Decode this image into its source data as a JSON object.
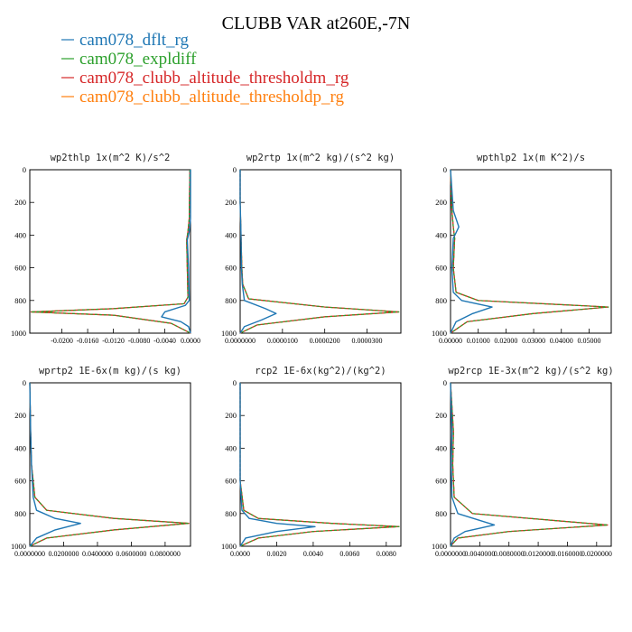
{
  "title": "CLUBB VAR at260E,-7N",
  "legend": [
    {
      "name": "cam078_dflt_rg",
      "color": "#1f77b4"
    },
    {
      "name": "cam078_expldiff",
      "color": "#2ca02c"
    },
    {
      "name": "cam078_clubb_altitude_thresholdm_rg",
      "color": "#d62728"
    },
    {
      "name": "cam078_clubb_altitude_thresholdp_rg",
      "color": "#ff7f0e"
    }
  ],
  "chart_data": [
    {
      "type": "line",
      "title": "wp2thlp  1x(m^2 K)/s^2",
      "xlim": [
        -0.025,
        0.0
      ],
      "ylim": [
        1000,
        0
      ],
      "yticks": [
        "0",
        "200",
        "400",
        "600",
        "800",
        "1000"
      ],
      "xticks": [
        "-0.0200",
        "-0.0160",
        "-0.0120",
        "-0.0080",
        "-0.0040",
        "0.0000"
      ],
      "series": [
        {
          "name": "cam078_dflt_rg",
          "x": [
            0.0,
            0.0,
            -0.0002,
            -0.0005,
            -0.0003,
            -0.0002,
            -0.0008,
            -0.004,
            -0.0045,
            -0.0015,
            -0.0003,
            0.0
          ],
          "y": [
            0,
            300,
            380,
            430,
            600,
            800,
            830,
            870,
            900,
            930,
            960,
            1000
          ]
        },
        {
          "name": "cam078_expldiff",
          "x": [
            -0.0001,
            -0.0002,
            -0.0004,
            -0.0006,
            -0.0005,
            -0.0004,
            -0.001,
            -0.012,
            -0.0248,
            -0.012,
            -0.003,
            0.0
          ],
          "y": [
            0,
            300,
            380,
            430,
            600,
            780,
            820,
            850,
            870,
            890,
            940,
            1000
          ]
        },
        {
          "name": "cam078_clubb_altitude_thresholdm_rg",
          "x": [
            -0.0001,
            -0.0002,
            -0.0004,
            -0.0006,
            -0.0005,
            -0.0004,
            -0.001,
            -0.012,
            -0.0248,
            -0.012,
            -0.003,
            0.0
          ],
          "y": [
            0,
            300,
            380,
            430,
            600,
            780,
            820,
            850,
            870,
            890,
            940,
            1000
          ]
        },
        {
          "name": "cam078_clubb_altitude_thresholdp_rg",
          "x": [
            -0.0001,
            -0.0002,
            -0.0004,
            -0.0006,
            -0.0005,
            -0.0004,
            -0.001,
            -0.012,
            -0.0248,
            -0.012,
            -0.003,
            0.0
          ],
          "y": [
            0,
            300,
            380,
            430,
            600,
            780,
            820,
            850,
            870,
            890,
            940,
            1000
          ]
        }
      ]
    },
    {
      "type": "line",
      "title": "wp2rtp  1x(m^2 kg)/(s^2 kg)",
      "xlim": [
        0.0,
        3.8e-05
      ],
      "ylim": [
        1000,
        0
      ],
      "yticks": [
        "0",
        "200",
        "400",
        "600",
        "800",
        "1000"
      ],
      "xticks": [
        "0.0000000",
        "0.0000100",
        "0.0000200",
        "0.0000300"
      ],
      "series": [
        {
          "name": "cam078_dflt_rg",
          "x": [
            0.0,
            0.0,
            2e-07,
            3e-07,
            5e-07,
            1e-06,
            6e-06,
            8.5e-06,
            5e-06,
            1e-06,
            0.0
          ],
          "y": [
            0,
            200,
            400,
            600,
            700,
            800,
            850,
            880,
            920,
            960,
            1000
          ]
        },
        {
          "name": "cam078_expldiff",
          "x": [
            0.0,
            0.0,
            2e-07,
            4e-07,
            6e-07,
            2e-06,
            2e-05,
            3.75e-05,
            2e-05,
            4e-06,
            0.0
          ],
          "y": [
            0,
            200,
            400,
            600,
            700,
            790,
            840,
            870,
            900,
            950,
            1000
          ]
        },
        {
          "name": "cam078_clubb_altitude_thresholdm_rg",
          "x": [
            0.0,
            0.0,
            2e-07,
            4e-07,
            6e-07,
            2e-06,
            2e-05,
            3.75e-05,
            2e-05,
            4e-06,
            0.0
          ],
          "y": [
            0,
            200,
            400,
            600,
            700,
            790,
            840,
            870,
            900,
            950,
            1000
          ]
        },
        {
          "name": "cam078_clubb_altitude_thresholdp_rg",
          "x": [
            0.0,
            0.0,
            2e-07,
            4e-07,
            6e-07,
            2e-06,
            2e-05,
            3.75e-05,
            2e-05,
            4e-06,
            0.0
          ],
          "y": [
            0,
            200,
            400,
            600,
            700,
            790,
            840,
            870,
            900,
            950,
            1000
          ]
        }
      ]
    },
    {
      "type": "line",
      "title": "wpthlp2  1x(m K^2)/s",
      "xlim": [
        0.0,
        0.058
      ],
      "ylim": [
        1000,
        0
      ],
      "yticks": [
        "0",
        "200",
        "400",
        "600",
        "800",
        "1000"
      ],
      "xticks": [
        "0.00000",
        "0.01000",
        "0.02000",
        "0.03000",
        "0.04000",
        "0.05000"
      ],
      "series": [
        {
          "name": "cam078_dflt_rg",
          "x": [
            0.0,
            0.001,
            0.003,
            0.001,
            0.0005,
            0.001,
            0.004,
            0.015,
            0.008,
            0.002,
            0.0
          ],
          "y": [
            0,
            250,
            350,
            420,
            600,
            750,
            800,
            840,
            880,
            930,
            1000
          ]
        },
        {
          "name": "cam078_expldiff",
          "x": [
            0.0,
            0.0005,
            0.001,
            0.0015,
            0.001,
            0.002,
            0.01,
            0.057,
            0.03,
            0.006,
            0.0
          ],
          "y": [
            0,
            250,
            350,
            420,
            600,
            750,
            800,
            840,
            880,
            930,
            1000
          ]
        },
        {
          "name": "cam078_clubb_altitude_thresholdm_rg",
          "x": [
            0.0,
            0.0005,
            0.001,
            0.0015,
            0.001,
            0.002,
            0.01,
            0.057,
            0.03,
            0.006,
            0.0
          ],
          "y": [
            0,
            250,
            350,
            420,
            600,
            750,
            800,
            840,
            880,
            930,
            1000
          ]
        },
        {
          "name": "cam078_clubb_altitude_thresholdp_rg",
          "x": [
            0.0,
            0.0005,
            0.001,
            0.0015,
            0.001,
            0.002,
            0.01,
            0.057,
            0.03,
            0.006,
            0.0
          ],
          "y": [
            0,
            250,
            350,
            420,
            600,
            750,
            800,
            840,
            880,
            930,
            1000
          ]
        }
      ]
    },
    {
      "type": "line",
      "title": "wprtp2  1E-6x(m kg)/(s kg)",
      "xlim": [
        0.0,
        0.095
      ],
      "ylim": [
        1000,
        0
      ],
      "yticks": [
        "0",
        "200",
        "400",
        "600",
        "800",
        "1000"
      ],
      "xticks": [
        "0.0000000",
        "0.0200000",
        "0.0400000",
        "0.0600000",
        "0.0800000"
      ],
      "series": [
        {
          "name": "cam078_dflt_rg",
          "x": [
            0.0,
            0.0005,
            0.001,
            0.002,
            0.004,
            0.015,
            0.03,
            0.015,
            0.004,
            0.0
          ],
          "y": [
            0,
            300,
            500,
            700,
            780,
            830,
            860,
            900,
            950,
            1000
          ]
        },
        {
          "name": "cam078_expldiff",
          "x": [
            0.0,
            0.0005,
            0.001,
            0.003,
            0.01,
            0.05,
            0.094,
            0.05,
            0.01,
            0.0
          ],
          "y": [
            0,
            300,
            500,
            700,
            780,
            830,
            860,
            900,
            950,
            1000
          ]
        },
        {
          "name": "cam078_clubb_altitude_thresholdm_rg",
          "x": [
            0.0,
            0.0005,
            0.001,
            0.003,
            0.01,
            0.05,
            0.094,
            0.05,
            0.01,
            0.0
          ],
          "y": [
            0,
            300,
            500,
            700,
            780,
            830,
            860,
            900,
            950,
            1000
          ]
        },
        {
          "name": "cam078_clubb_altitude_thresholdp_rg",
          "x": [
            0.0,
            0.0005,
            0.001,
            0.003,
            0.01,
            0.05,
            0.094,
            0.05,
            0.01,
            0.0
          ],
          "y": [
            0,
            300,
            500,
            700,
            780,
            830,
            860,
            900,
            950,
            1000
          ]
        }
      ]
    },
    {
      "type": "line",
      "title": "rcp2  1E-6x(kg^2)/(kg^2)",
      "xlim": [
        0.0,
        0.0088
      ],
      "ylim": [
        1000,
        0
      ],
      "yticks": [
        "0",
        "200",
        "400",
        "600",
        "800",
        "1000"
      ],
      "xticks": [
        "0.0000",
        "0.0020",
        "0.0040",
        "0.0060",
        "0.0080"
      ],
      "series": [
        {
          "name": "cam078_dflt_rg",
          "x": [
            0.0,
            0.0,
            0.0,
            0.0001,
            0.0005,
            0.002,
            0.0041,
            0.002,
            0.0003,
            0.0
          ],
          "y": [
            0,
            300,
            600,
            780,
            830,
            860,
            880,
            910,
            950,
            1000
          ]
        },
        {
          "name": "cam078_expldiff",
          "x": [
            0.0,
            0.0,
            0.0,
            0.0002,
            0.001,
            0.005,
            0.0087,
            0.004,
            0.001,
            0.0
          ],
          "y": [
            0,
            300,
            600,
            780,
            830,
            860,
            880,
            910,
            950,
            1000
          ]
        },
        {
          "name": "cam078_clubb_altitude_thresholdm_rg",
          "x": [
            0.0,
            0.0,
            0.0,
            0.0002,
            0.001,
            0.005,
            0.0087,
            0.004,
            0.001,
            0.0
          ],
          "y": [
            0,
            300,
            600,
            780,
            830,
            860,
            880,
            910,
            950,
            1000
          ]
        },
        {
          "name": "cam078_clubb_altitude_thresholdp_rg",
          "x": [
            0.0,
            0.0,
            0.0,
            0.0002,
            0.001,
            0.005,
            0.0087,
            0.004,
            0.001,
            0.0
          ],
          "y": [
            0,
            300,
            600,
            780,
            830,
            860,
            880,
            910,
            950,
            1000
          ]
        }
      ]
    },
    {
      "type": "line",
      "title": "wp2rcp  1E-3x(m^2 kg)/(s^2 kg)",
      "xlim": [
        0.0,
        0.022
      ],
      "ylim": [
        1000,
        0
      ],
      "yticks": [
        "0",
        "200",
        "400",
        "600",
        "800",
        "1000"
      ],
      "xticks": [
        "0.0000000",
        "0.0040000",
        "0.0080000",
        "0.0120000",
        "0.0160000",
        "0.0200000"
      ],
      "series": [
        {
          "name": "cam078_dflt_rg",
          "x": [
            0.0,
            0.0002,
            0.0001,
            0.0002,
            0.001,
            0.006,
            0.002,
            0.0005,
            0.0
          ],
          "y": [
            0,
            300,
            500,
            700,
            800,
            870,
            910,
            950,
            1000
          ]
        },
        {
          "name": "cam078_expldiff",
          "x": [
            0.0,
            0.0004,
            0.0003,
            0.0005,
            0.003,
            0.0215,
            0.008,
            0.001,
            0.0
          ],
          "y": [
            0,
            300,
            500,
            700,
            800,
            870,
            910,
            950,
            1000
          ]
        },
        {
          "name": "cam078_clubb_altitude_thresholdm_rg",
          "x": [
            0.0,
            0.0004,
            0.0003,
            0.0005,
            0.003,
            0.0215,
            0.008,
            0.001,
            0.0
          ],
          "y": [
            0,
            300,
            500,
            700,
            800,
            870,
            910,
            950,
            1000
          ]
        },
        {
          "name": "cam078_clubb_altitude_thresholdp_rg",
          "x": [
            0.0,
            0.0004,
            0.0003,
            0.0005,
            0.003,
            0.0215,
            0.008,
            0.001,
            0.0
          ],
          "y": [
            0,
            300,
            500,
            700,
            800,
            870,
            910,
            950,
            1000
          ]
        }
      ]
    }
  ]
}
